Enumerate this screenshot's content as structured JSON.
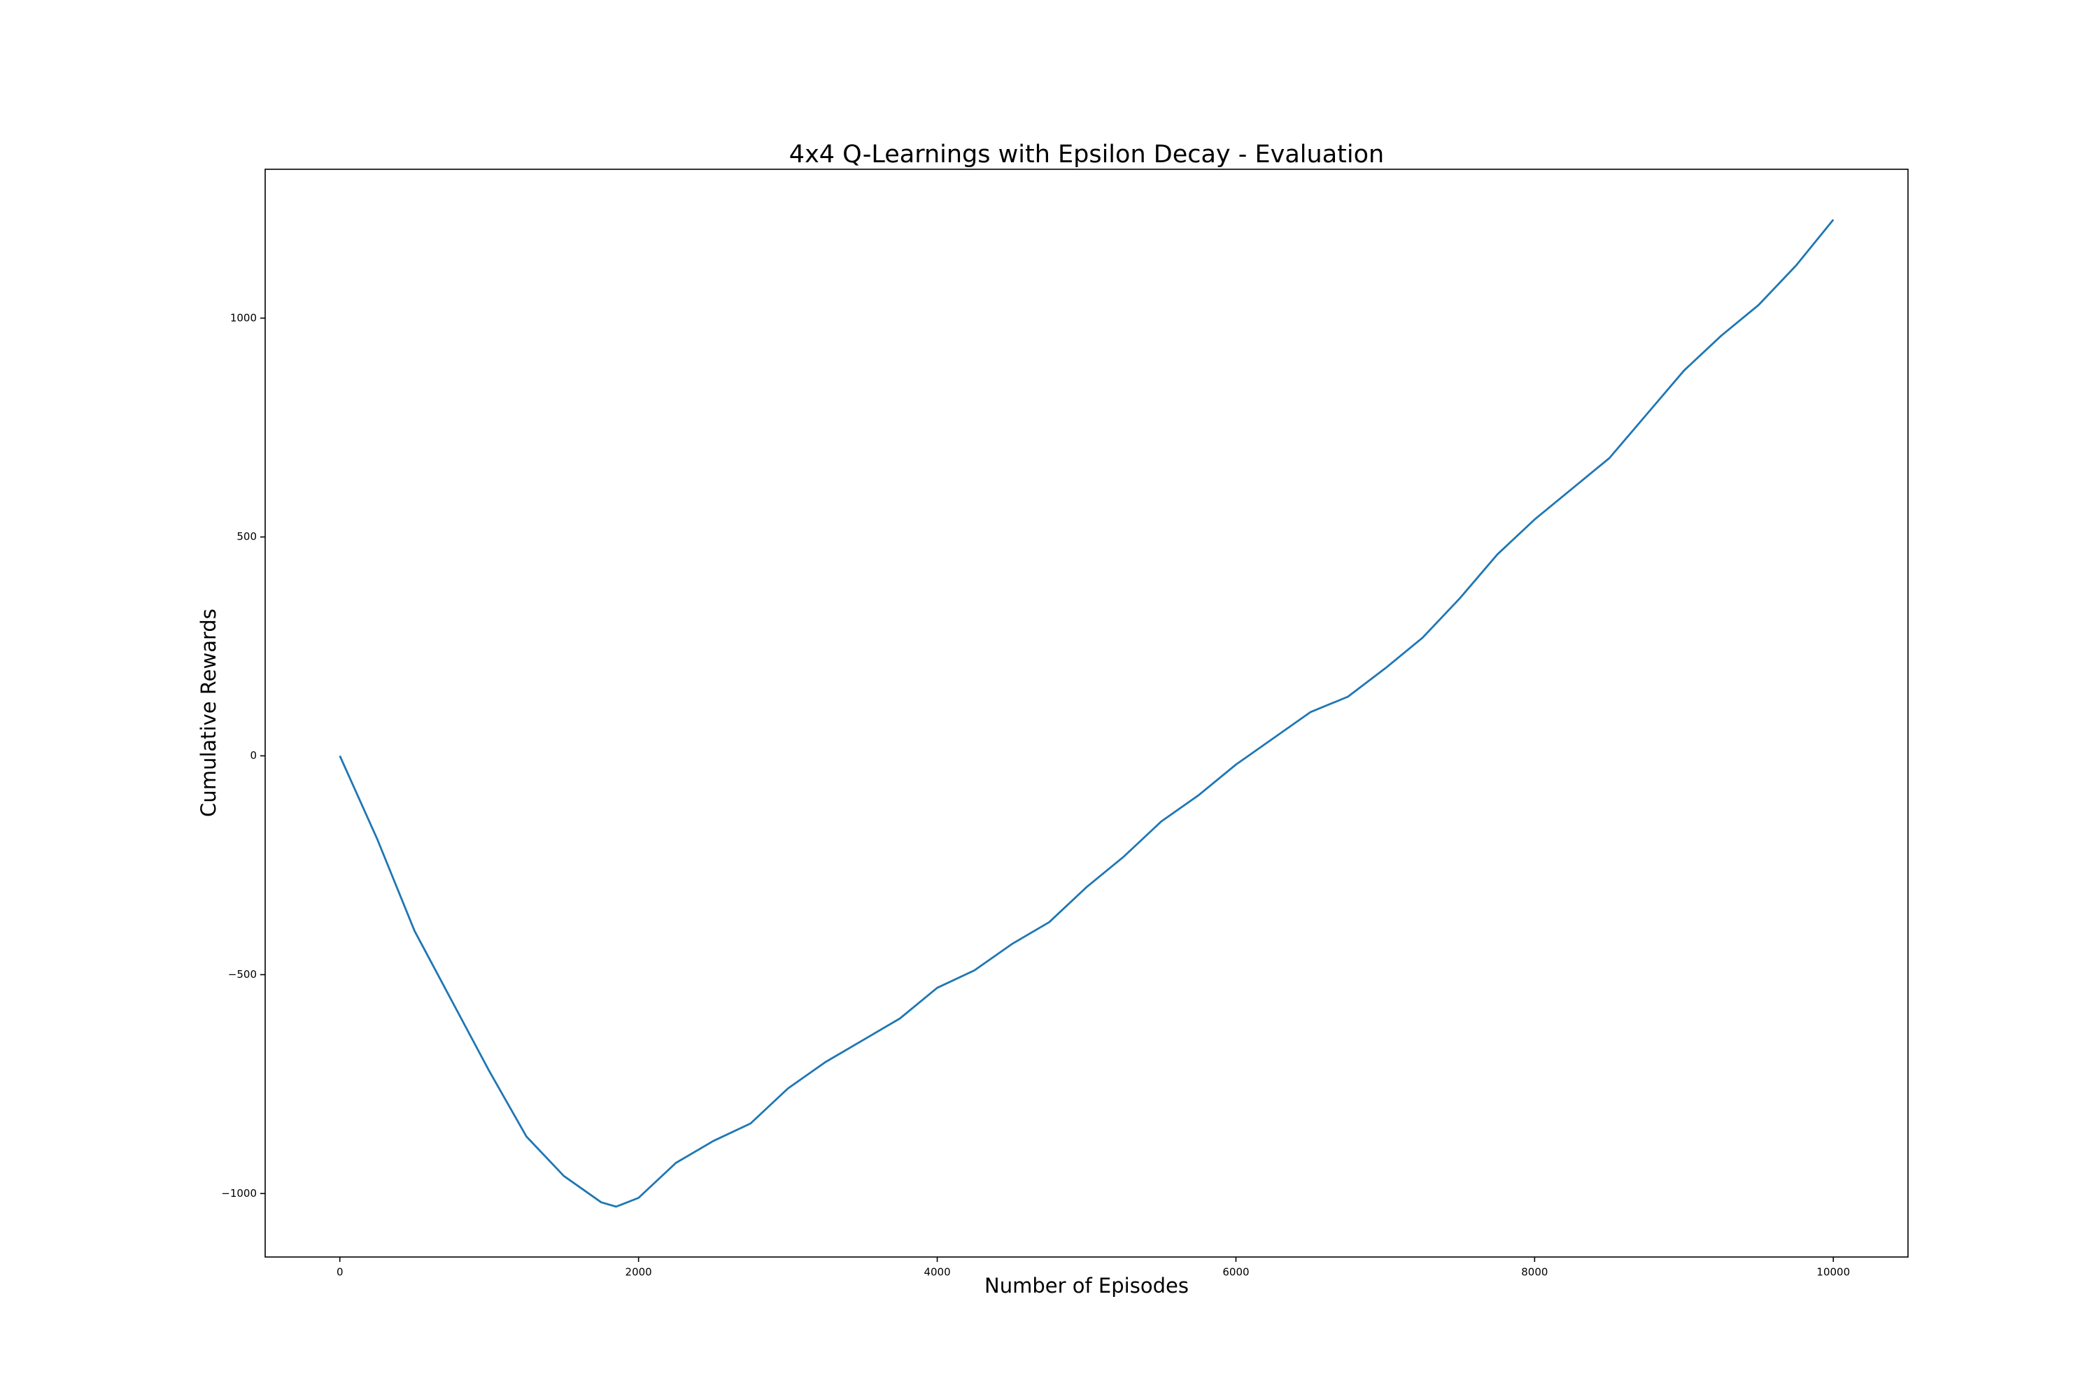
{
  "chart_data": {
    "type": "line",
    "title": "4x4 Q-Learnings with Epsilon Decay - Evaluation",
    "x_label": "Number of Episodes",
    "y_label": "Cumulative Rewards",
    "x": [
      0,
      250,
      500,
      750,
      1000,
      1250,
      1500,
      1750,
      1850,
      2000,
      2250,
      2500,
      2750,
      3000,
      3250,
      3500,
      3750,
      4000,
      4250,
      4500,
      4750,
      5000,
      5250,
      5500,
      5750,
      6000,
      6250,
      6500,
      6750,
      7000,
      7250,
      7500,
      7750,
      8000,
      8250,
      8500,
      8750,
      9000,
      9250,
      9500,
      9750,
      10000
    ],
    "values": [
      0,
      -190,
      -400,
      -560,
      -720,
      -870,
      -960,
      -1020,
      -1030,
      -1010,
      -930,
      -880,
      -840,
      -760,
      -700,
      -650,
      -600,
      -530,
      -490,
      -430,
      -380,
      -300,
      -230,
      -150,
      -90,
      -20,
      40,
      100,
      135,
      200,
      270,
      360,
      460,
      540,
      610,
      680,
      780,
      880,
      960,
      1030,
      1120,
      1225
    ],
    "color": "#1f77b4",
    "xlim": [
      -500,
      10500
    ],
    "ylim": [
      -1145,
      1340
    ],
    "xticks": [
      0,
      2000,
      4000,
      6000,
      8000,
      10000
    ],
    "yticks": [
      {
        "value": -1000,
        "label": "−1000"
      },
      {
        "value": -500,
        "label": "−500"
      },
      0,
      500,
      1000
    ],
    "grid": false
  }
}
